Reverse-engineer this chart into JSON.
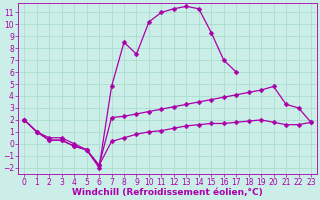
{
  "xlabel": "Windchill (Refroidissement éolien,°C)",
  "background_color": "#cceee8",
  "grid_color": "#aaddcc",
  "line_color": "#aa00aa",
  "xlim": [
    -0.5,
    23.5
  ],
  "ylim": [
    -2.5,
    11.8
  ],
  "xticks": [
    0,
    1,
    2,
    3,
    4,
    5,
    6,
    7,
    8,
    9,
    10,
    11,
    12,
    13,
    14,
    15,
    16,
    17,
    18,
    19,
    20,
    21,
    22,
    23
  ],
  "yticks": [
    -2,
    -1,
    0,
    1,
    2,
    3,
    4,
    5,
    6,
    7,
    8,
    9,
    10,
    11
  ],
  "line1_x": [
    0,
    1,
    2,
    3,
    4,
    5,
    6,
    7,
    8,
    9,
    10,
    11,
    12,
    13,
    14,
    15,
    16,
    17,
    18,
    19,
    20,
    21,
    22,
    23
  ],
  "line1_y": [
    2.0,
    1.0,
    0.5,
    0.5,
    0.0,
    -0.5,
    -2.0,
    4.8,
    8.5,
    7.5,
    10.2,
    11.0,
    11.3,
    11.5,
    11.3,
    9.3,
    7.0,
    6.0,
    null,
    null,
    null,
    null,
    null,
    null
  ],
  "line2_x": [
    0,
    1,
    2,
    3,
    4,
    5,
    6,
    7,
    8,
    9,
    10,
    11,
    12,
    13,
    14,
    15,
    16,
    17,
    18,
    19,
    20,
    21,
    22,
    23
  ],
  "line2_y": [
    2.0,
    1.0,
    0.3,
    0.3,
    -0.2,
    -0.5,
    -1.8,
    2.2,
    2.3,
    2.5,
    2.7,
    2.9,
    3.1,
    3.3,
    3.5,
    3.7,
    3.9,
    4.1,
    4.3,
    4.5,
    4.8,
    3.3,
    3.0,
    1.8
  ],
  "line3_x": [
    0,
    1,
    2,
    3,
    4,
    5,
    6,
    7,
    8,
    9,
    10,
    11,
    12,
    13,
    14,
    15,
    16,
    17,
    18,
    19,
    20,
    21,
    22,
    23
  ],
  "line3_y": [
    2.0,
    1.0,
    0.3,
    0.3,
    -0.2,
    -0.5,
    -1.8,
    0.2,
    0.5,
    0.8,
    1.0,
    1.1,
    1.3,
    1.5,
    1.6,
    1.7,
    1.7,
    1.8,
    1.9,
    2.0,
    1.8,
    1.6,
    1.6,
    1.8
  ],
  "marker": "D",
  "markersize": 2.5,
  "linewidth": 0.9,
  "tick_fontsize": 5.5,
  "label_fontsize": 6.5
}
